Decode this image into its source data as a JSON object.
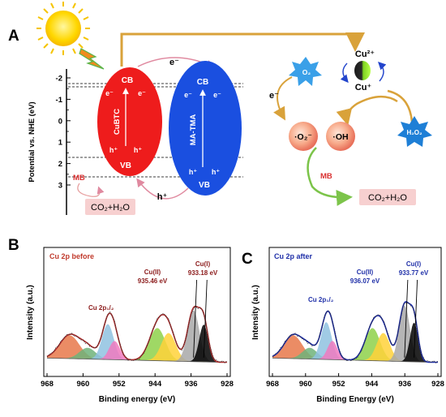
{
  "panel_a": {
    "letter": "A",
    "y_axis_label": "Potential vs. NHE (eV)",
    "y_ticks": [
      "-2",
      "-1",
      "0",
      "1",
      "2",
      "3"
    ],
    "cubtc": {
      "name": "CuBTC",
      "cb": "CB",
      "vb": "VB",
      "electron": "e⁻",
      "hole": "h⁺",
      "color": "#ee1c1c"
    },
    "matma": {
      "name": "MA-TMA",
      "cb": "CB",
      "vb": "VB",
      "electron": "e⁻",
      "hole": "h⁺",
      "color": "#1a4fe0"
    },
    "transfer_electron": "e⁻",
    "transfer_hole": "h⁺",
    "mb_left": "MB",
    "product_left": "CO₂+H₂O",
    "cu2": "Cu²⁺",
    "cu1": "Cu⁺",
    "o2": "O₂",
    "electron_right": "e⁻",
    "superoxide": "·O₂⁻",
    "hydroxyl": "·OH",
    "h2o2": "H₂O₂",
    "mb_right": "MB",
    "product_right": "CO₂+H₂O"
  },
  "panel_b": {
    "letter": "B",
    "title": "Cu 2p before",
    "peak_cu2": "Cu(II)",
    "peak_cu2_value": "935.46 eV",
    "peak_cu1": "Cu(I)",
    "peak_cu1_value": "933.18 eV",
    "peak_2p12": "Cu 2p₁/₂",
    "title_color": "#c0392b",
    "label_color": "#8b1a1a"
  },
  "panel_c": {
    "letter": "C",
    "title": "Cu 2p after",
    "peak_cu2": "Cu(II)",
    "peak_cu2_value": "936.07 eV",
    "peak_cu1": "Cu(I)",
    "peak_cu1_value": "933.77 eV",
    "peak_2p12": "Cu 2p₁/₂",
    "title_color": "#1f2fa8",
    "label_color": "#1f2fa8"
  },
  "chart_data": [
    {
      "type": "line",
      "title": "Cu 2p before",
      "xlabel": "Binding energy (eV)",
      "ylabel": "Intensity (a.u.)",
      "xlim": [
        968,
        928
      ],
      "x_ticks": [
        968,
        960,
        952,
        944,
        936,
        928
      ],
      "peak_markers_eV": [
        935.46,
        933.18
      ],
      "envelope_color": "#b03030"
    },
    {
      "type": "line",
      "title": "Cu 2p after",
      "xlabel": "Binding Energy (eV)",
      "ylabel": "Intensity (a.u.)",
      "xlim": [
        968,
        928
      ],
      "x_ticks": [
        968,
        960,
        952,
        944,
        936,
        928
      ],
      "peak_markers_eV": [
        936.07,
        933.77
      ],
      "envelope_color": "#1f2fa8"
    }
  ]
}
